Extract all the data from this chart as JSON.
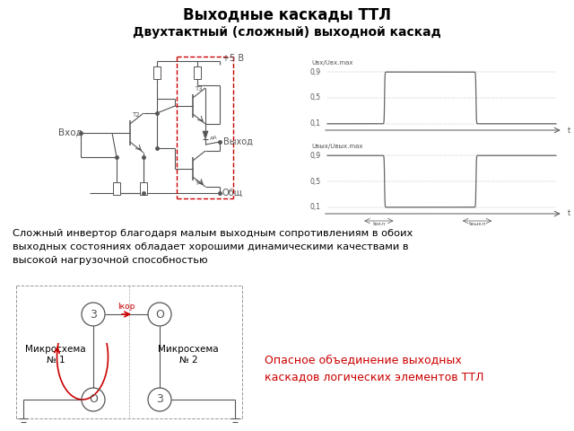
{
  "title": "Выходные каскады ТТЛ",
  "subtitle": "Двухтактный (сложный) выходной каскад",
  "body_text": "Сложный инвертор благодаря малым выходным сопротивлениям в обоих\nвыходных состояниях обладает хорошими динамическими качествами в\nвысокой нагрузочной способностью",
  "danger_text": "Опасное объединение выходных\nкаскадов логических элементов ТТЛ",
  "bg_color": "#ffffff",
  "title_color": "#000000",
  "subtitle_color": "#000000",
  "body_color": "#000000",
  "danger_color": "#cc0000",
  "circuit_color": "#555555",
  "wave_color": "#666666",
  "dashed_red": "#cc0000"
}
